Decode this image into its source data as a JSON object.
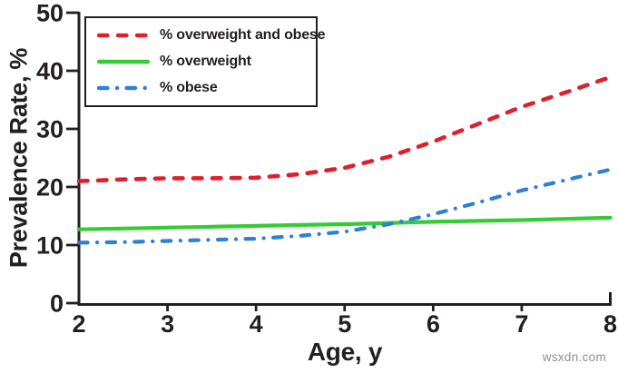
{
  "watermark": {
    "text": "wsxdn.com"
  },
  "chart_data": {
    "type": "line",
    "title": "",
    "xlabel": "Age, y",
    "ylabel": "Prevalence Rate, %",
    "xlim": [
      2,
      8
    ],
    "ylim": [
      0,
      50
    ],
    "x_ticks": [
      2,
      3,
      4,
      5,
      6,
      7,
      8
    ],
    "y_ticks": [
      0,
      10,
      20,
      30,
      40,
      50
    ],
    "grid": false,
    "legend_position": "top-left",
    "axis_color": "#231f20",
    "x": [
      2,
      2.5,
      3,
      3.5,
      4,
      4.5,
      5,
      5.5,
      6,
      6.5,
      7,
      7.5,
      8
    ],
    "series": [
      {
        "name": "% overweight and obese",
        "color": "#e01f2c",
        "style": "dashed",
        "values": [
          21.0,
          21.3,
          21.5,
          21.5,
          21.6,
          22.2,
          23.3,
          25.2,
          27.8,
          30.8,
          33.8,
          36.3,
          38.9
        ]
      },
      {
        "name": "% overweight",
        "color": "#33cc33",
        "style": "solid",
        "values": [
          12.7,
          12.85,
          13.0,
          13.15,
          13.3,
          13.45,
          13.6,
          13.8,
          14.0,
          14.15,
          14.3,
          14.5,
          14.7
        ]
      },
      {
        "name": "% obese",
        "color": "#2e7fd6",
        "style": "dash-dot",
        "values": [
          10.4,
          10.5,
          10.7,
          10.9,
          11.1,
          11.6,
          12.3,
          13.6,
          15.3,
          17.3,
          19.4,
          21.2,
          23.0
        ]
      }
    ]
  }
}
